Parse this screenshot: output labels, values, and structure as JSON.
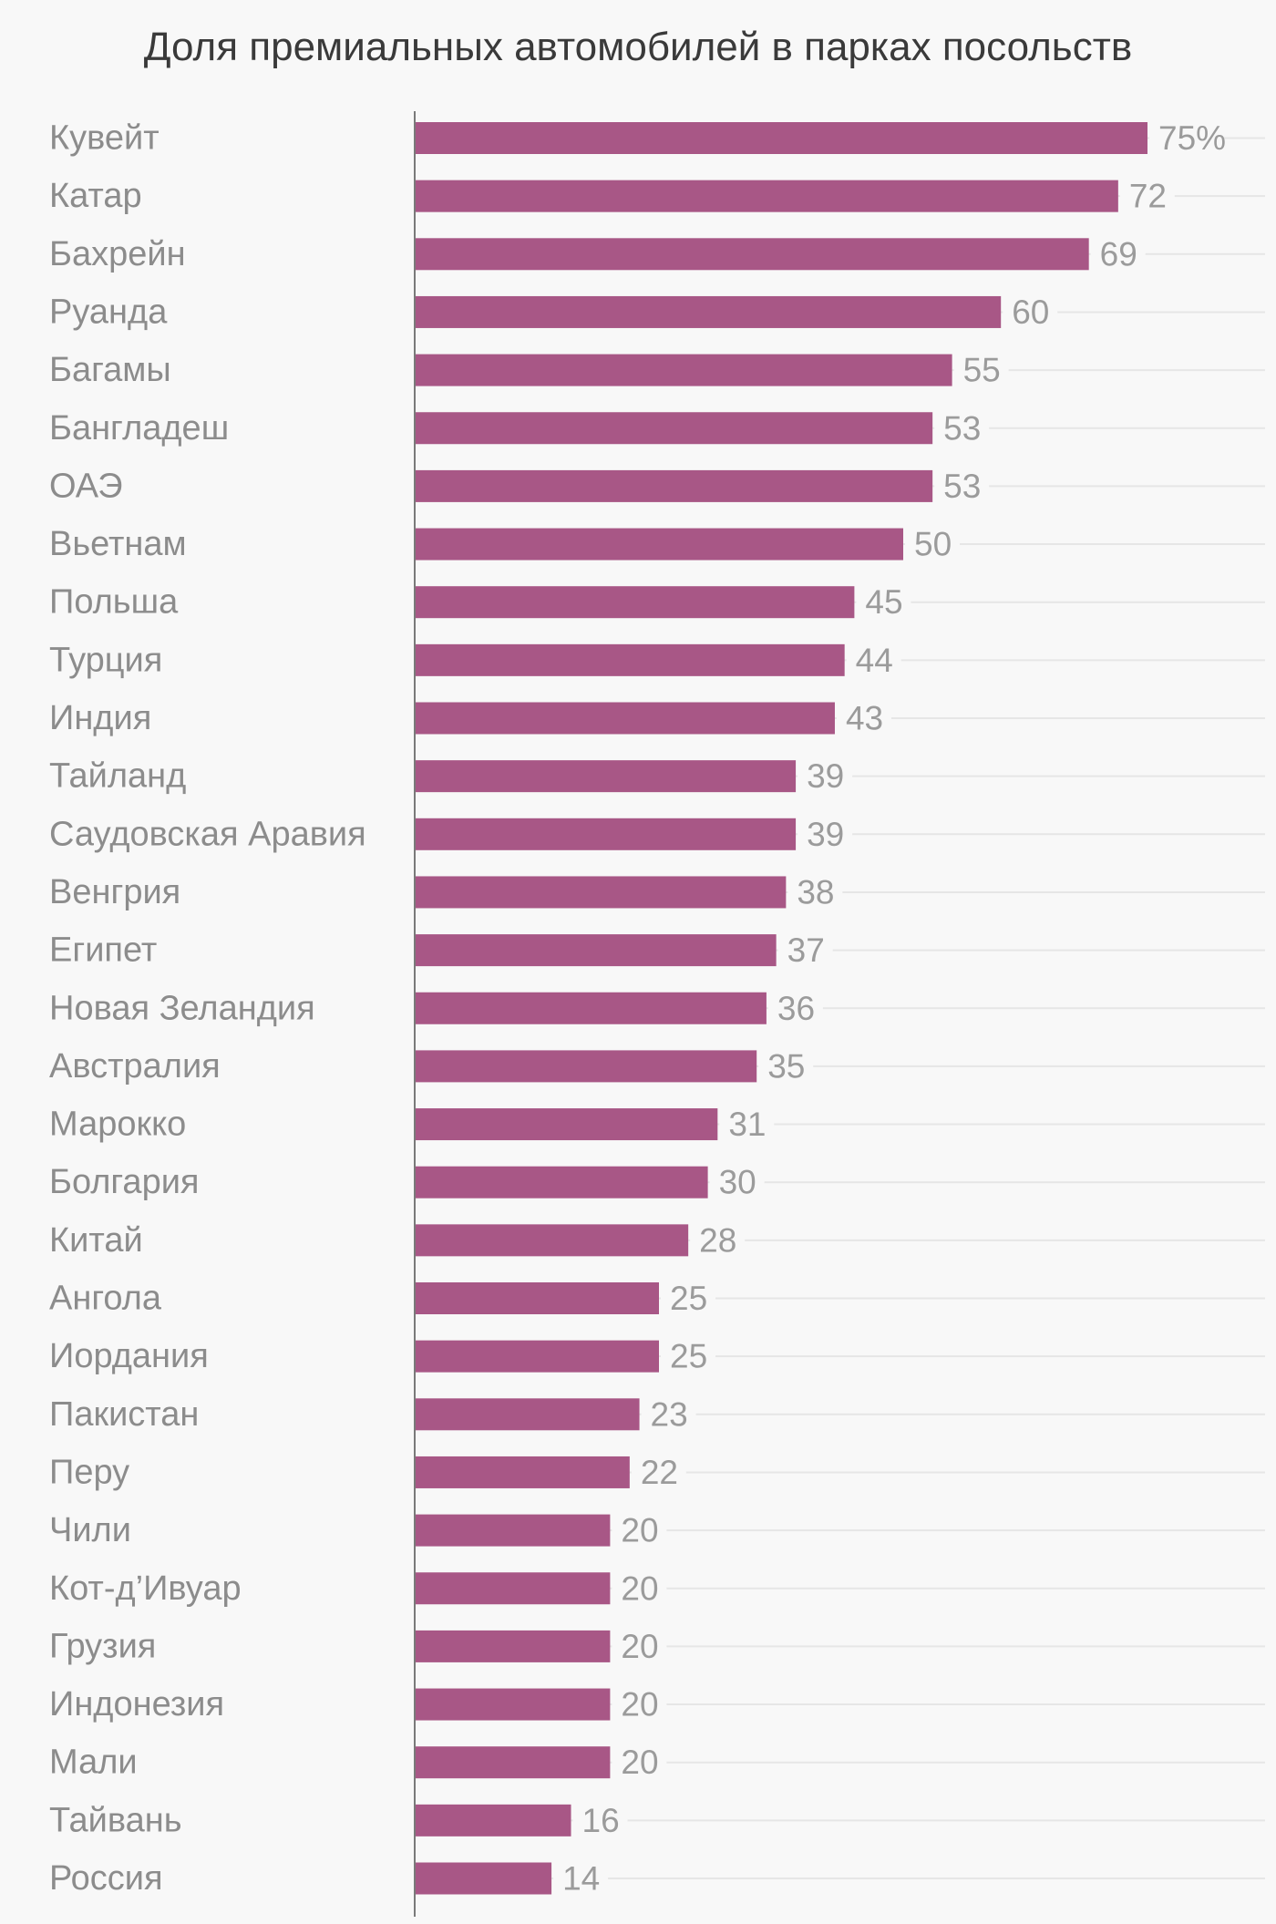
{
  "chart_data": {
    "type": "bar",
    "orientation": "horizontal",
    "title": "Доля премиальных автомобилей в парках посольств",
    "xlabel": "",
    "ylabel": "",
    "unit_suffix": "%",
    "xlim": [
      0,
      100
    ],
    "grid": false,
    "bar_color": "#a85786",
    "categories": [
      "Кувейт",
      "Катар",
      "Бахрейн",
      "Руанда",
      "Багамы",
      "Бангладеш",
      "ОАЭ",
      "Вьетнам",
      "Польша",
      "Турция",
      "Индия",
      "Тайланд",
      "Саудовская Аравия",
      "Венгрия",
      "Египет",
      "Новая Зеландия",
      "Австралия",
      "Марокко",
      "Болгария",
      "Китай",
      "Ангола",
      "Иордания",
      "Пакистан",
      "Перу",
      "Чили",
      "Кот-д’Ивуар",
      "Грузия",
      "Индонезия",
      "Мали",
      "Тайвань",
      "Россия"
    ],
    "values": [
      75,
      72,
      69,
      60,
      55,
      53,
      53,
      50,
      45,
      44,
      43,
      39,
      39,
      38,
      37,
      36,
      35,
      31,
      30,
      28,
      25,
      25,
      23,
      22,
      20,
      20,
      20,
      20,
      20,
      16,
      14
    ],
    "value_labels": [
      "75%",
      "72",
      "69",
      "60",
      "55",
      "53",
      "53",
      "50",
      "45",
      "44",
      "43",
      "39",
      "39",
      "38",
      "37",
      "36",
      "35",
      "31",
      "30",
      "28",
      "25",
      "25",
      "23",
      "22",
      "20",
      "20",
      "20",
      "20",
      "20",
      "16",
      "14"
    ]
  }
}
